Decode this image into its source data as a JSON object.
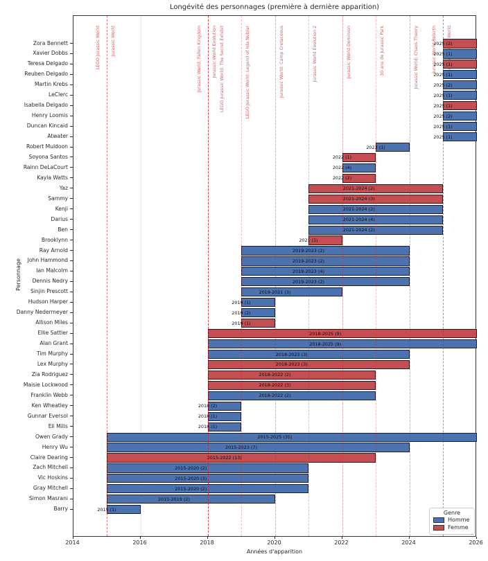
{
  "title": "Longévité des personnages (première à dernière apparition)",
  "xlabel": "Années d'apparition",
  "ylabel": "Personnage",
  "legend": {
    "title": "Genre",
    "items": [
      {
        "label": "Homme",
        "color": "#4C72B0"
      },
      {
        "label": "Femme",
        "color": "#C44E52"
      }
    ]
  },
  "chart_data": {
    "type": "bar",
    "orientation": "horizontal-gantt",
    "xlim": [
      2014,
      2026
    ],
    "xticks": [
      2014,
      2016,
      2018,
      2020,
      2022,
      2024,
      2026
    ],
    "grid": true,
    "legend_position": "lower right",
    "gender_colors": {
      "Homme": "#4C72B0",
      "Femme": "#C44E52"
    },
    "release_lines": [
      {
        "label": "LEGO Jurassic World",
        "year": 2015,
        "side": "left"
      },
      {
        "label": "Jurassic World",
        "year": 2015,
        "side": "right"
      },
      {
        "label": "Jurassic World: Fallen Kingdom",
        "year": 2018,
        "side": "left"
      },
      {
        "label": "Jurassic World Evolution",
        "year": 2018,
        "side": "right"
      },
      {
        "label": "LEGO Jurassic World: The Secret Exhibit",
        "year": 2018,
        "side": "right"
      },
      {
        "label": "LEGO Jurassic World: Legend of Isla Nublar",
        "year": 2019,
        "side": "right"
      },
      {
        "label": "Jurassic World: Camp Cretaceous",
        "year": 2020,
        "side": "right"
      },
      {
        "label": "Jurassic World Evolution 2",
        "year": 2021,
        "side": "right"
      },
      {
        "label": "Jurassic World Dominion",
        "year": 2022,
        "side": "right"
      },
      {
        "label": "30 ans de Jurassic Park",
        "year": 2023,
        "side": "right"
      },
      {
        "label": "Jurassic World: Chaos Theory",
        "year": 2024,
        "side": "right"
      },
      {
        "label": "Jurassic World Rebirth",
        "year": 2025,
        "side": "left"
      },
      {
        "label": "10 ans de Jurassic World",
        "year": 2025,
        "side": "right"
      }
    ],
    "rows": [
      {
        "name": "Zora Bennett",
        "gender": "Femme",
        "first": 2025,
        "last": 2025,
        "count": 2,
        "bar_label": "2025 (2)"
      },
      {
        "name": "Xavier Dobbs",
        "gender": "Homme",
        "first": 2025,
        "last": 2025,
        "count": 1,
        "bar_label": "2025 (1)"
      },
      {
        "name": "Teresa Delgado",
        "gender": "Femme",
        "first": 2025,
        "last": 2025,
        "count": 1,
        "bar_label": "2025 (1)"
      },
      {
        "name": "Reuben Delgado",
        "gender": "Homme",
        "first": 2025,
        "last": 2025,
        "count": 1,
        "bar_label": "2025 (1)"
      },
      {
        "name": "Martin Krebs",
        "gender": "Homme",
        "first": 2025,
        "last": 2025,
        "count": 2,
        "bar_label": "2025 (2)"
      },
      {
        "name": "LeClerc",
        "gender": "Homme",
        "first": 2025,
        "last": 2025,
        "count": 1,
        "bar_label": "2025 (1)"
      },
      {
        "name": "Isabella Delgado",
        "gender": "Femme",
        "first": 2025,
        "last": 2025,
        "count": 1,
        "bar_label": "2025 (1)"
      },
      {
        "name": "Henry Loomis",
        "gender": "Homme",
        "first": 2025,
        "last": 2025,
        "count": 2,
        "bar_label": "2025 (2)"
      },
      {
        "name": "Duncan Kincaid",
        "gender": "Homme",
        "first": 2025,
        "last": 2025,
        "count": 1,
        "bar_label": "2025 (1)"
      },
      {
        "name": "Atwater",
        "gender": "Homme",
        "first": 2025,
        "last": 2025,
        "count": 1,
        "bar_label": "2025 (1)"
      },
      {
        "name": "Robert Muldoon",
        "gender": "Homme",
        "first": 2023,
        "last": 2023,
        "count": 1,
        "bar_label": "2023 (1)"
      },
      {
        "name": "Soyona Santos",
        "gender": "Femme",
        "first": 2022,
        "last": 2022,
        "count": 1,
        "bar_label": "2022 (1)"
      },
      {
        "name": "Rainn DeLaCourt",
        "gender": "Homme",
        "first": 2022,
        "last": 2022,
        "count": 4,
        "bar_label": "2022 (4)"
      },
      {
        "name": "Kayla Watts",
        "gender": "Femme",
        "first": 2022,
        "last": 2022,
        "count": 2,
        "bar_label": "2022 (2)"
      },
      {
        "name": "Yaz",
        "gender": "Femme",
        "first": 2021,
        "last": 2024,
        "count": 2,
        "bar_label": "2021-2024 (2)"
      },
      {
        "name": "Sammy",
        "gender": "Femme",
        "first": 2021,
        "last": 2024,
        "count": 3,
        "bar_label": "2021-2024 (3)"
      },
      {
        "name": "Kenji",
        "gender": "Homme",
        "first": 2021,
        "last": 2024,
        "count": 2,
        "bar_label": "2021-2024 (2)"
      },
      {
        "name": "Darius",
        "gender": "Homme",
        "first": 2021,
        "last": 2024,
        "count": 4,
        "bar_label": "2021-2024 (4)"
      },
      {
        "name": "Ben",
        "gender": "Homme",
        "first": 2021,
        "last": 2024,
        "count": 2,
        "bar_label": "2021-2024 (2)"
      },
      {
        "name": "Brooklynn",
        "gender": "Femme",
        "first": 2021,
        "last": 2021,
        "count": 1,
        "bar_label": "2021 (1)"
      },
      {
        "name": "Ray Arnold",
        "gender": "Homme",
        "first": 2019,
        "last": 2023,
        "count": 2,
        "bar_label": "2019-2023 (2)"
      },
      {
        "name": "John Hammond",
        "gender": "Homme",
        "first": 2019,
        "last": 2023,
        "count": 2,
        "bar_label": "2019-2023 (2)"
      },
      {
        "name": "Ian Malcolm",
        "gender": "Homme",
        "first": 2019,
        "last": 2023,
        "count": 4,
        "bar_label": "2019-2023 (4)"
      },
      {
        "name": "Dennis Nedry",
        "gender": "Homme",
        "first": 2019,
        "last": 2023,
        "count": 2,
        "bar_label": "2019-2023 (2)"
      },
      {
        "name": "Sinjin Prescott",
        "gender": "Homme",
        "first": 2019,
        "last": 2021,
        "count": 3,
        "bar_label": "2019-2021 (3)"
      },
      {
        "name": "Hudson Harper",
        "gender": "Homme",
        "first": 2019,
        "last": 2019,
        "count": 1,
        "bar_label": "2019 (1)"
      },
      {
        "name": "Danny Nedermeyer",
        "gender": "Homme",
        "first": 2019,
        "last": 2019,
        "count": 2,
        "bar_label": "2019 (2)"
      },
      {
        "name": "Allison Miles",
        "gender": "Femme",
        "first": 2019,
        "last": 2019,
        "count": 1,
        "bar_label": "2019 (1)"
      },
      {
        "name": "Ellie Sattler",
        "gender": "Femme",
        "first": 2018,
        "last": 2025,
        "count": 9,
        "bar_label": "2018-2025 (9)"
      },
      {
        "name": "Alan Grant",
        "gender": "Homme",
        "first": 2018,
        "last": 2025,
        "count": 9,
        "bar_label": "2018-2025 (9)"
      },
      {
        "name": "Tim Murphy",
        "gender": "Homme",
        "first": 2018,
        "last": 2023,
        "count": 3,
        "bar_label": "2018-2023 (3)"
      },
      {
        "name": "Lex Murphy",
        "gender": "Femme",
        "first": 2018,
        "last": 2023,
        "count": 3,
        "bar_label": "2018-2023 (3)"
      },
      {
        "name": "Zia Rodriguez",
        "gender": "Femme",
        "first": 2018,
        "last": 2022,
        "count": 2,
        "bar_label": "2018-2022 (2)"
      },
      {
        "name": "Maisie Lockwood",
        "gender": "Femme",
        "first": 2018,
        "last": 2022,
        "count": 3,
        "bar_label": "2018-2022 (3)"
      },
      {
        "name": "Franklin Webb",
        "gender": "Homme",
        "first": 2018,
        "last": 2022,
        "count": 2,
        "bar_label": "2018-2022 (2)"
      },
      {
        "name": "Ken Wheatley",
        "gender": "Homme",
        "first": 2018,
        "last": 2018,
        "count": 2,
        "bar_label": "2018 (2)"
      },
      {
        "name": "Gunnar Eversol",
        "gender": "Homme",
        "first": 2018,
        "last": 2018,
        "count": 1,
        "bar_label": "2018 (1)"
      },
      {
        "name": "Eli Mills",
        "gender": "Homme",
        "first": 2018,
        "last": 2018,
        "count": 1,
        "bar_label": "2018 (1)"
      },
      {
        "name": "Owen Grady",
        "gender": "Homme",
        "first": 2015,
        "last": 2025,
        "count": 35,
        "bar_label": "2015-2025 (35)"
      },
      {
        "name": "Henry Wu",
        "gender": "Homme",
        "first": 2015,
        "last": 2023,
        "count": 7,
        "bar_label": "2015-2023 (7)"
      },
      {
        "name": "Claire Dearing",
        "gender": "Femme",
        "first": 2015,
        "last": 2022,
        "count": 13,
        "bar_label": "2015-2022 (13)"
      },
      {
        "name": "Zach Mitchell",
        "gender": "Homme",
        "first": 2015,
        "last": 2020,
        "count": 2,
        "bar_label": "2015-2020 (2)"
      },
      {
        "name": "Vic Hoskins",
        "gender": "Homme",
        "first": 2015,
        "last": 2020,
        "count": 3,
        "bar_label": "2015-2020 (3)"
      },
      {
        "name": "Gray Mitchell",
        "gender": "Homme",
        "first": 2015,
        "last": 2020,
        "count": 2,
        "bar_label": "2015-2020 (2)"
      },
      {
        "name": "Simon Masrani",
        "gender": "Homme",
        "first": 2015,
        "last": 2019,
        "count": 2,
        "bar_label": "2015-2019 (2)"
      },
      {
        "name": "Barry",
        "gender": "Homme",
        "first": 2015,
        "last": 2015,
        "count": 1,
        "bar_label": "2015 (1)"
      }
    ]
  }
}
